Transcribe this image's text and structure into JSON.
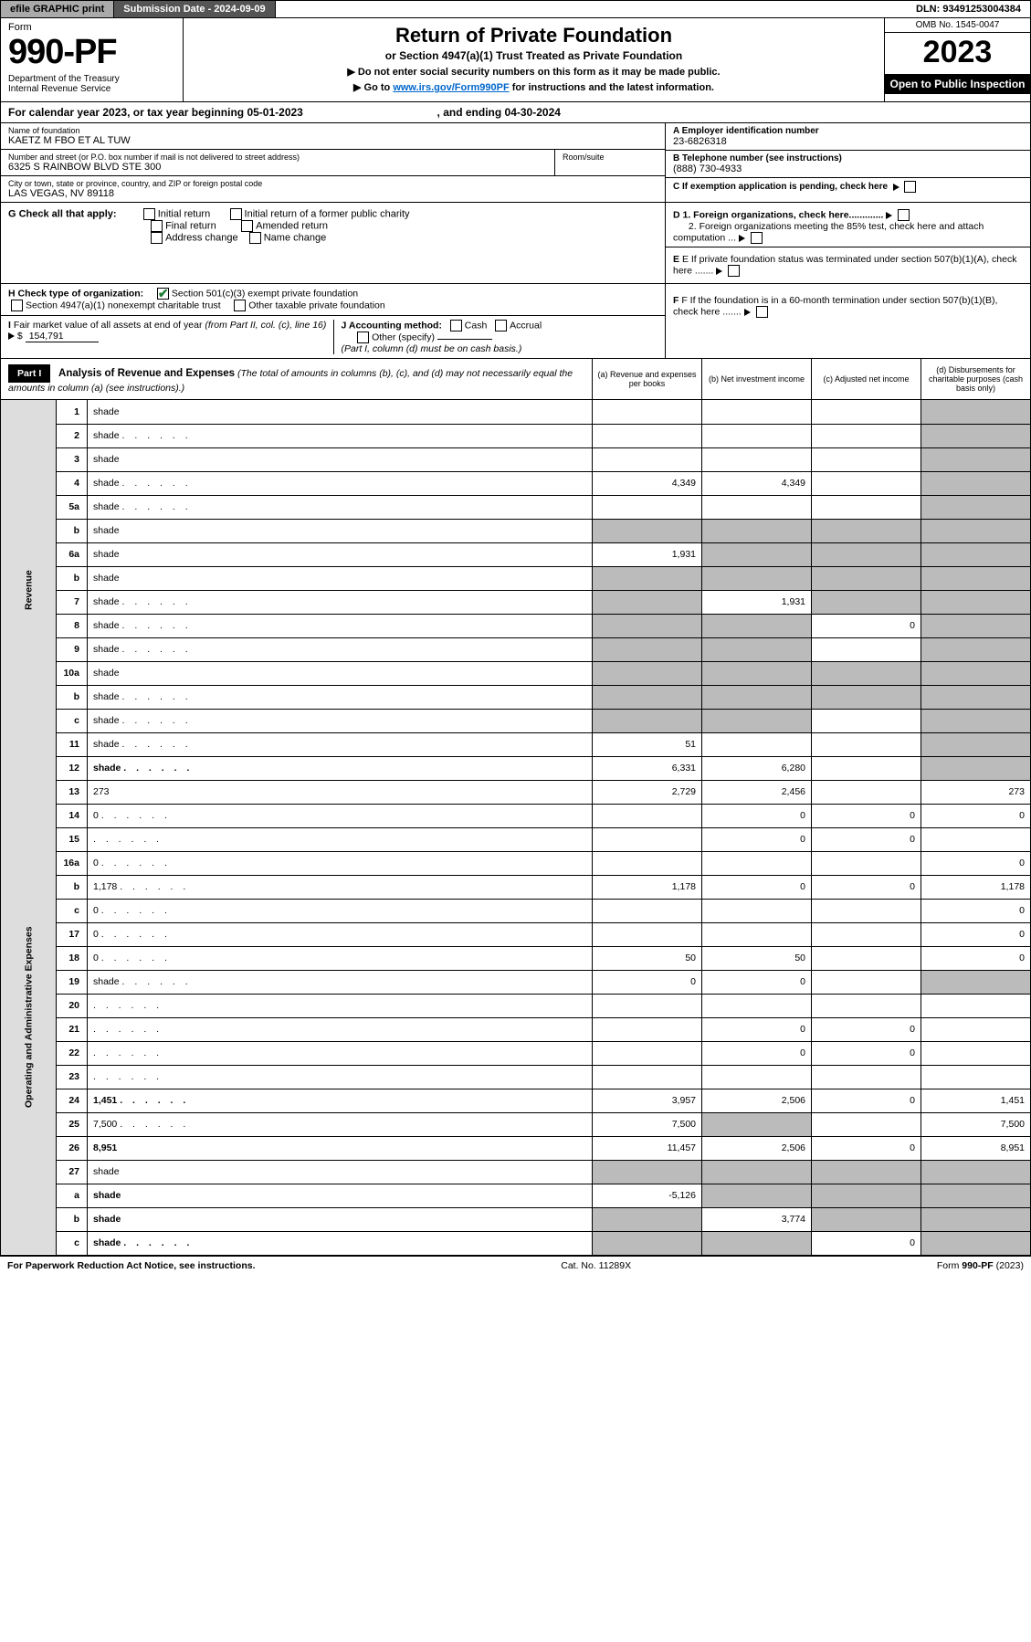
{
  "top": {
    "efile": "efile GRAPHIC print",
    "sub_date_label": "Submission Date - 2024-09-09",
    "dln": "DLN: 93491253004384"
  },
  "header": {
    "form_word": "Form",
    "form_num": "990-PF",
    "dept": "Department of the Treasury\nInternal Revenue Service",
    "title": "Return of Private Foundation",
    "sub1": "or Section 4947(a)(1) Trust Treated as Private Foundation",
    "sub2a": "▶ Do not enter social security numbers on this form as it may be made public.",
    "sub2b_pre": "▶ Go to ",
    "sub2b_link": "www.irs.gov/Form990PF",
    "sub2b_post": " for instructions and the latest information.",
    "omb": "OMB No. 1545-0047",
    "year": "2023",
    "open": "Open to Public Inspection"
  },
  "cal": {
    "text_pre": "For calendar year 2023, or tax year beginning ",
    "begin": "05-01-2023",
    "mid": " , and ending ",
    "end": "04-30-2024"
  },
  "info": {
    "name_lbl": "Name of foundation",
    "name": "KAETZ M FBO ET AL TUW",
    "addr_lbl": "Number and street (or P.O. box number if mail is not delivered to street address)",
    "addr": "6325 S RAINBOW BLVD STE 300",
    "room_lbl": "Room/suite",
    "city_lbl": "City or town, state or province, country, and ZIP or foreign postal code",
    "city": "LAS VEGAS, NV  89118",
    "ein_lbl": "A Employer identification number",
    "ein": "23-6826318",
    "tel_lbl": "B Telephone number (see instructions)",
    "tel": "(888) 730-4933",
    "c_lbl": "C If exemption application is pending, check here",
    "d1": "D 1. Foreign organizations, check here.............",
    "d2": "2. Foreign organizations meeting the 85% test, check here and attach computation ...",
    "e_lbl": "E  If private foundation status was terminated under section 507(b)(1)(A), check here .......",
    "f_lbl": "F  If the foundation is in a 60-month termination under section 507(b)(1)(B), check here ......."
  },
  "g": {
    "label": "G Check all that apply:",
    "opts": [
      "Initial return",
      "Final return",
      "Address change",
      "Initial return of a former public charity",
      "Amended return",
      "Name change"
    ]
  },
  "h": {
    "label": "H Check type of organization:",
    "o1": "Section 501(c)(3) exempt private foundation",
    "o2": "Section 4947(a)(1) nonexempt charitable trust",
    "o3": "Other taxable private foundation"
  },
  "i": {
    "label": "I Fair market value of all assets at end of year (from Part II, col. (c), line 16) ▶ $",
    "val": "154,791"
  },
  "j": {
    "label": "J Accounting method:",
    "o1": "Cash",
    "o2": "Accrual",
    "o3": "Other (specify)",
    "note": "(Part I, column (d) must be on cash basis.)"
  },
  "part1": {
    "hdr": "Part I",
    "title": "Analysis of Revenue and Expenses",
    "title_note": "(The total of amounts in columns (b), (c), and (d) may not necessarily equal the amounts in column (a) (see instructions).)",
    "cols": {
      "a": "(a)   Revenue and expenses per books",
      "b": "(b)   Net investment income",
      "c": "(c)   Adjusted net income",
      "d": "(d)   Disbursements for charitable purposes (cash basis only)"
    }
  },
  "sides": {
    "rev": "Revenue",
    "exp": "Operating and Administrative Expenses"
  },
  "lines": [
    {
      "n": "1",
      "d": "shade",
      "a": "",
      "b": "",
      "c": ""
    },
    {
      "n": "2",
      "d": "shade",
      "dot": true,
      "a": "",
      "b": "",
      "c": "",
      "nowrap": true
    },
    {
      "n": "3",
      "d": "shade",
      "a": "",
      "b": "",
      "c": ""
    },
    {
      "n": "4",
      "d": "shade",
      "dot": true,
      "a": "4,349",
      "b": "4,349",
      "c": ""
    },
    {
      "n": "5a",
      "d": "shade",
      "dot": true,
      "a": "",
      "b": "",
      "c": ""
    },
    {
      "n": "b",
      "d": "shade",
      "sub": true,
      "a": "shade",
      "b": "shade",
      "c": "shade"
    },
    {
      "n": "6a",
      "d": "shade",
      "a": "1,931",
      "b": "shade",
      "c": "shade"
    },
    {
      "n": "b",
      "d": "shade",
      "sub": true,
      "a": "shade",
      "b": "shade",
      "c": "shade"
    },
    {
      "n": "7",
      "d": "shade",
      "dot": true,
      "a": "shade",
      "b": "1,931",
      "c": "shade"
    },
    {
      "n": "8",
      "d": "shade",
      "dot": true,
      "a": "shade",
      "b": "shade",
      "c": "0"
    },
    {
      "n": "9",
      "d": "shade",
      "dot": true,
      "a": "shade",
      "b": "shade",
      "c": ""
    },
    {
      "n": "10a",
      "d": "shade",
      "sub": true,
      "a": "shade",
      "b": "shade",
      "c": "shade"
    },
    {
      "n": "b",
      "d": "shade",
      "dot": true,
      "sub": true,
      "a": "shade",
      "b": "shade",
      "c": "shade"
    },
    {
      "n": "c",
      "d": "shade",
      "dot": true,
      "a": "shade",
      "b": "shade",
      "c": ""
    },
    {
      "n": "11",
      "d": "shade",
      "dot": true,
      "a": "51",
      "b": "",
      "c": ""
    },
    {
      "n": "12",
      "d": "shade",
      "dot": true,
      "bold": true,
      "a": "6,331",
      "b": "6,280",
      "c": ""
    },
    {
      "n": "13",
      "d": "273",
      "a": "2,729",
      "b": "2,456",
      "c": "",
      "sec": "exp"
    },
    {
      "n": "14",
      "d": "0",
      "dot": true,
      "a": "",
      "b": "0",
      "c": "0"
    },
    {
      "n": "15",
      "d": "",
      "dot": true,
      "a": "",
      "b": "0",
      "c": "0"
    },
    {
      "n": "16a",
      "d": "0",
      "dot": true,
      "a": "",
      "b": "",
      "c": ""
    },
    {
      "n": "b",
      "d": "1,178",
      "dot": true,
      "a": "1,178",
      "b": "0",
      "c": "0"
    },
    {
      "n": "c",
      "d": "0",
      "dot": true,
      "a": "",
      "b": "",
      "c": ""
    },
    {
      "n": "17",
      "d": "0",
      "dot": true,
      "a": "",
      "b": "",
      "c": ""
    },
    {
      "n": "18",
      "d": "0",
      "dot": true,
      "a": "50",
      "b": "50",
      "c": ""
    },
    {
      "n": "19",
      "d": "shade",
      "dot": true,
      "a": "0",
      "b": "0",
      "c": ""
    },
    {
      "n": "20",
      "d": "",
      "dot": true,
      "a": "",
      "b": "",
      "c": ""
    },
    {
      "n": "21",
      "d": "",
      "dot": true,
      "a": "",
      "b": "0",
      "c": "0"
    },
    {
      "n": "22",
      "d": "",
      "dot": true,
      "a": "",
      "b": "0",
      "c": "0"
    },
    {
      "n": "23",
      "d": "",
      "dot": true,
      "a": "",
      "b": "",
      "c": ""
    },
    {
      "n": "24",
      "d": "1,451",
      "dot": true,
      "bold": true,
      "a": "3,957",
      "b": "2,506",
      "c": "0"
    },
    {
      "n": "25",
      "d": "7,500",
      "dot": true,
      "a": "7,500",
      "b": "shade",
      "c": ""
    },
    {
      "n": "26",
      "d": "8,951",
      "bold": true,
      "a": "11,457",
      "b": "2,506",
      "c": "0"
    },
    {
      "n": "27",
      "d": "shade",
      "a": "shade",
      "b": "shade",
      "c": "shade"
    },
    {
      "n": "a",
      "d": "shade",
      "bold": true,
      "a": "-5,126",
      "b": "shade",
      "c": "shade"
    },
    {
      "n": "b",
      "d": "shade",
      "bold": true,
      "a": "shade",
      "b": "3,774",
      "c": "shade"
    },
    {
      "n": "c",
      "d": "shade",
      "dot": true,
      "bold": true,
      "a": "shade",
      "b": "shade",
      "c": "0"
    }
  ],
  "foot": {
    "left": "For Paperwork Reduction Act Notice, see instructions.",
    "mid": "Cat. No. 11289X",
    "right": "Form 990-PF (2023)"
  }
}
